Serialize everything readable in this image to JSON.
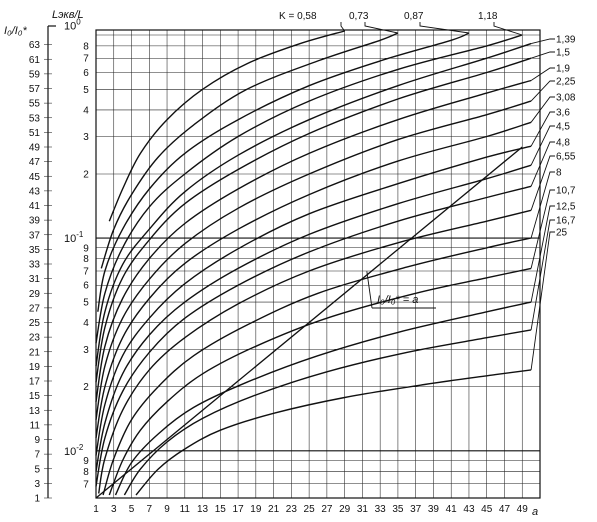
{
  "chart_data": {
    "type": "line",
    "x": {
      "label": "a",
      "range": [
        1,
        51
      ],
      "ticks": [
        "1",
        "3",
        "5",
        "7",
        "9",
        "11",
        "13",
        "15",
        "17",
        "19",
        "21",
        "23",
        "25",
        "27",
        "29",
        "31",
        "33",
        "35",
        "37",
        "39",
        "41",
        "43",
        "45",
        "47",
        "49"
      ]
    },
    "y_left": {
      "label_main": "I₀/I₀*",
      "range": [
        1,
        65
      ],
      "ticks": [
        "1",
        "3",
        "5",
        "7",
        "9",
        "11",
        "13",
        "15",
        "17",
        "19",
        "21",
        "23",
        "25",
        "27",
        "29",
        "31",
        "33",
        "35",
        "37",
        "39",
        "41",
        "43",
        "45",
        "47",
        "49",
        "51",
        "53",
        "55",
        "57",
        "59",
        "61",
        "63"
      ]
    },
    "y_log": {
      "label_main": "Lэкв/L",
      "scale": "log",
      "range": [
        0.006,
        0.95
      ],
      "decade_labels": [
        {
          "text": "10",
          "exp": "-2",
          "value": 0.01
        },
        {
          "text": "10",
          "exp": "-1",
          "value": 0.1
        },
        {
          "text": "10",
          "exp": "0",
          "value": 1
        }
      ],
      "minor_labels": [
        {
          "text": "7",
          "value": 0.007
        },
        {
          "text": "8",
          "value": 0.008
        },
        {
          "text": "9",
          "value": 0.009
        },
        {
          "text": "2",
          "value": 0.02
        },
        {
          "text": "3",
          "value": 0.03
        },
        {
          "text": "4",
          "value": 0.04
        },
        {
          "text": "5",
          "value": 0.05
        },
        {
          "text": "6",
          "value": 0.06
        },
        {
          "text": "7",
          "value": 0.07
        },
        {
          "text": "8",
          "value": 0.08
        },
        {
          "text": "9",
          "value": 0.09
        },
        {
          "text": "2",
          "value": 0.2
        },
        {
          "text": "3",
          "value": 0.3
        },
        {
          "text": "4",
          "value": 0.4
        },
        {
          "text": "5",
          "value": 0.5
        },
        {
          "text": "6",
          "value": 0.6
        },
        {
          "text": "7",
          "value": 0.7
        },
        {
          "text": "8",
          "value": 0.8
        }
      ]
    },
    "k_prefix": "K = ",
    "series": [
      {
        "k": "0,58",
        "a": [
          2.5,
          4,
          6,
          9,
          13,
          18,
          24,
          29
        ],
        "l": [
          0.12,
          0.17,
          0.25,
          0.36,
          0.5,
          0.66,
          0.82,
          0.94
        ]
      },
      {
        "k": "0,73",
        "a": [
          1.6,
          3,
          5,
          8,
          12,
          18,
          26,
          33,
          35
        ],
        "l": [
          0.072,
          0.11,
          0.16,
          0.24,
          0.34,
          0.5,
          0.68,
          0.85,
          0.92
        ]
      },
      {
        "k": "0,87",
        "a": [
          1.2,
          2,
          4,
          7,
          11,
          17,
          25,
          33,
          41,
          43
        ],
        "l": [
          0.045,
          0.07,
          0.11,
          0.17,
          0.25,
          0.36,
          0.52,
          0.68,
          0.85,
          0.92
        ]
      },
      {
        "k": "1,18",
        "a": [
          1.0,
          2,
          4,
          7,
          11,
          17,
          25,
          35,
          45,
          49
        ],
        "l": [
          0.032,
          0.055,
          0.09,
          0.14,
          0.2,
          0.3,
          0.44,
          0.62,
          0.8,
          0.9
        ]
      },
      {
        "k": "1,39",
        "a": [
          1.0,
          2,
          4,
          7,
          11,
          17,
          25,
          35,
          45,
          50
        ],
        "l": [
          0.025,
          0.045,
          0.075,
          0.11,
          0.165,
          0.245,
          0.36,
          0.52,
          0.7,
          0.82
        ]
      },
      {
        "k": "1,5",
        "a": [
          1.0,
          2,
          4,
          7,
          11,
          17,
          25,
          35,
          45,
          50
        ],
        "l": [
          0.021,
          0.038,
          0.065,
          0.098,
          0.145,
          0.21,
          0.31,
          0.45,
          0.6,
          0.7
        ]
      },
      {
        "k": "1,9",
        "a": [
          1.0,
          2,
          4,
          7,
          11,
          17,
          25,
          35,
          45,
          50
        ],
        "l": [
          0.017,
          0.031,
          0.052,
          0.08,
          0.117,
          0.17,
          0.25,
          0.36,
          0.48,
          0.55
        ]
      },
      {
        "k": "2,25",
        "a": [
          1.0,
          2,
          4,
          7,
          11,
          17,
          25,
          35,
          45,
          50
        ],
        "l": [
          0.014,
          0.025,
          0.042,
          0.064,
          0.094,
          0.138,
          0.2,
          0.29,
          0.38,
          0.44
        ]
      },
      {
        "k": "3,08",
        "a": [
          1.0,
          2,
          4,
          7,
          11,
          17,
          25,
          35,
          45,
          50
        ],
        "l": [
          0.0115,
          0.02,
          0.034,
          0.052,
          0.076,
          0.11,
          0.16,
          0.23,
          0.3,
          0.35
        ]
      },
      {
        "k": "3,6",
        "a": [
          1.0,
          2,
          4,
          7,
          11,
          17,
          25,
          35,
          45,
          50
        ],
        "l": [
          0.0095,
          0.0165,
          0.028,
          0.042,
          0.061,
          0.089,
          0.13,
          0.18,
          0.24,
          0.27
        ]
      },
      {
        "k": "4,5",
        "a": [
          1.0,
          2,
          4,
          7,
          11,
          17,
          25,
          35,
          45,
          50
        ],
        "l": [
          0.008,
          0.0135,
          0.023,
          0.035,
          0.05,
          0.072,
          0.104,
          0.145,
          0.19,
          0.22
        ]
      },
      {
        "k": "4,8",
        "a": [
          1.0,
          2,
          4,
          7,
          11,
          17,
          25,
          35,
          45,
          50
        ],
        "l": [
          0.0068,
          0.0115,
          0.019,
          0.029,
          0.042,
          0.06,
          0.086,
          0.12,
          0.155,
          0.175
        ]
      },
      {
        "k": "6,55",
        "a": [
          1.3,
          2,
          4,
          7,
          11,
          17,
          25,
          35,
          45,
          50
        ],
        "l": [
          0.0063,
          0.0092,
          0.0155,
          0.024,
          0.034,
          0.049,
          0.07,
          0.095,
          0.12,
          0.135
        ]
      },
      {
        "k": "8",
        "a": [
          1.8,
          3,
          5,
          8,
          12,
          18,
          26,
          36,
          45,
          50
        ],
        "l": [
          0.0062,
          0.0092,
          0.014,
          0.02,
          0.028,
          0.039,
          0.055,
          0.073,
          0.09,
          0.1
        ]
      },
      {
        "k": "10,7",
        "a": [
          2.5,
          4,
          6,
          9,
          13,
          19,
          27,
          37,
          45,
          50
        ],
        "l": [
          0.0062,
          0.009,
          0.0125,
          0.017,
          0.023,
          0.031,
          0.042,
          0.055,
          0.065,
          0.072
        ]
      },
      {
        "k": "12,5",
        "a": [
          3.2,
          5,
          8,
          12,
          18,
          26,
          35,
          45,
          50
        ],
        "l": [
          0.0062,
          0.0088,
          0.012,
          0.016,
          0.021,
          0.028,
          0.036,
          0.045,
          0.05
        ]
      },
      {
        "k": "16,7",
        "a": [
          4.2,
          6,
          9,
          13,
          19,
          27,
          36,
          45,
          50
        ],
        "l": [
          0.0062,
          0.0082,
          0.011,
          0.0142,
          0.0183,
          0.0235,
          0.029,
          0.034,
          0.037
        ]
      },
      {
        "k": "25",
        "a": [
          5.5,
          8,
          11,
          15,
          21,
          29,
          38,
          46,
          50
        ],
        "l": [
          0.0062,
          0.0082,
          0.0102,
          0.0125,
          0.015,
          0.0178,
          0.0205,
          0.0228,
          0.024
        ]
      }
    ],
    "diagonal": {
      "label": "I₀/I₀* = a",
      "from": [
        1,
        1
      ],
      "to": [
        49,
        49
      ]
    },
    "grid": true
  }
}
